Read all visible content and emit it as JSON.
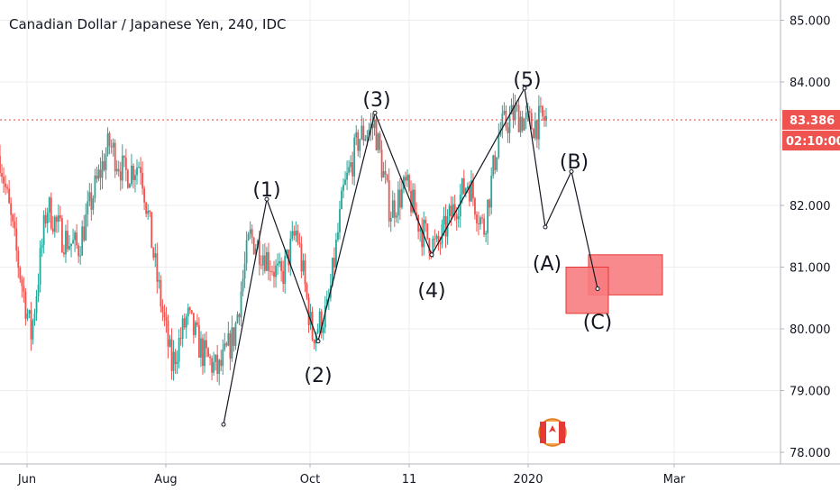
{
  "chart_data": {
    "type": "candlestick",
    "title": "Canadian Dollar / Japanese Yen, 240, IDC",
    "last_price": "83.386",
    "countdown": "02:10:00",
    "y_ticks": [
      "85.000",
      "84.000",
      "82.000",
      "81.000",
      "80.000",
      "79.000",
      "78.000"
    ],
    "y_tick_values": [
      85,
      84,
      82,
      81,
      80,
      79,
      78
    ],
    "x_ticks": [
      "Jun",
      "Aug",
      "Oct",
      "11",
      "2020",
      "Mar"
    ],
    "ylim": [
      77.9,
      85.8
    ],
    "price_path": [
      82.8,
      81.3,
      79.9,
      82.0,
      81.5,
      81.3,
      82.2,
      83.0,
      82.5,
      82.7,
      80.9,
      79.4,
      80.2,
      79.6,
      79.3,
      79.9,
      81.5,
      81.2,
      80.8,
      81.6,
      79.9,
      80.3,
      82.2,
      83.1,
      83.3,
      81.9,
      82.3,
      81.6,
      81.3,
      81.9,
      82.4,
      81.6,
      83.2,
      83.5,
      83.3,
      83.4
    ],
    "wave_labels": [
      "(1)",
      "(2)",
      "(3)",
      "(4)",
      "(5)",
      "(A)",
      "(B)",
      "(C)"
    ],
    "wave_points": [
      78.45,
      82.1,
      79.8,
      83.5,
      81.2,
      83.9,
      81.65,
      82.55,
      80.65
    ],
    "colors": {
      "up": "#26a69a",
      "down": "#ef5350",
      "price_line": "#ef5350",
      "wave_line": "#131722",
      "target_box": "#f77c80",
      "grid": "#ececef"
    }
  }
}
